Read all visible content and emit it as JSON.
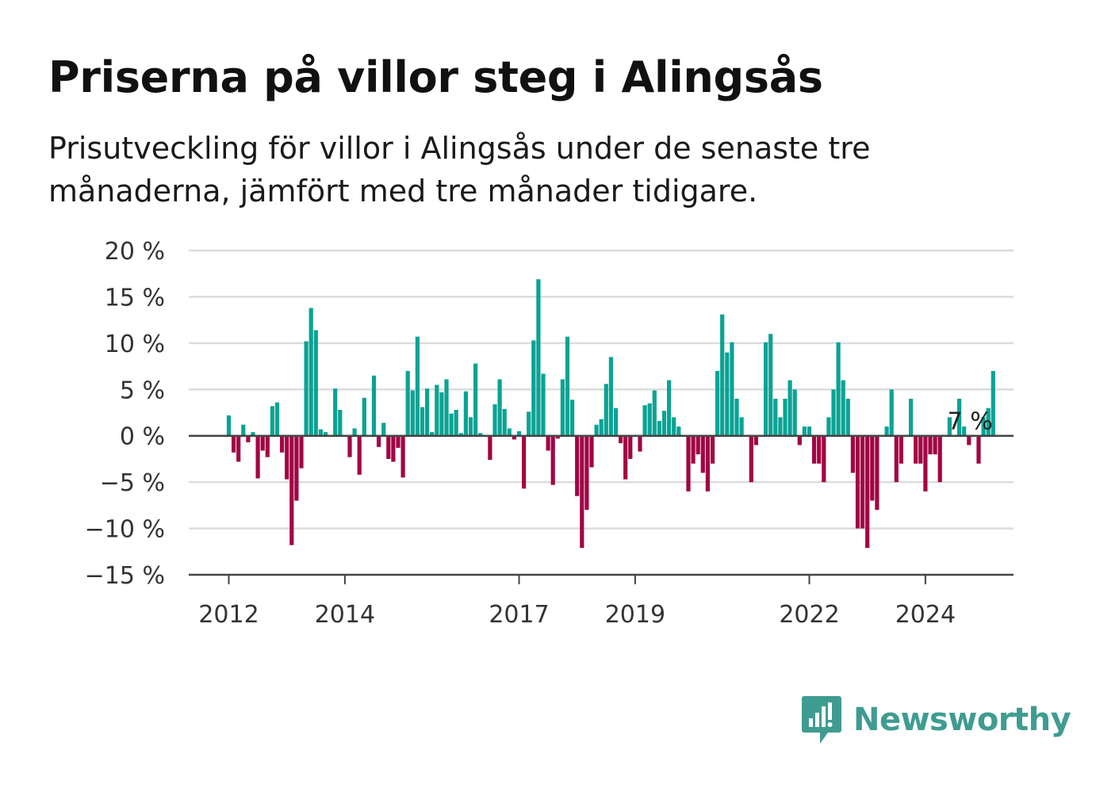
{
  "title": "Priserna på villor steg i Alingsås",
  "subtitle": "Prisutveckling för villor i Alingsås under de senaste tre månaderna, jämfört med tre månader tidigare.",
  "brand": {
    "name": "Newsworthy",
    "icon": "newsworthy-logo-icon",
    "color": "#3f9c91"
  },
  "colors": {
    "positive": "#0aa394",
    "negative": "#a10544",
    "grid": "#dcdcdc",
    "axis": "#444444"
  },
  "chart_data": {
    "type": "bar",
    "title": "Priserna på villor steg i Alingsås",
    "xlabel": "",
    "ylabel": "",
    "ylim": [
      -15,
      20
    ],
    "yticks": [
      20,
      15,
      10,
      5,
      0,
      -5,
      -10,
      -15
    ],
    "ytick_labels": [
      "20 %",
      "15 %",
      "10 %",
      "5 %",
      "0 %",
      "−5 %",
      "−10 %",
      "−15 %"
    ],
    "xticks": [
      {
        "label": "2012",
        "year": 2012
      },
      {
        "label": "2014",
        "year": 2014
      },
      {
        "label": "2017",
        "year": 2017
      },
      {
        "label": "2019",
        "year": 2019
      },
      {
        "label": "2022",
        "year": 2022
      },
      {
        "label": "2024",
        "year": 2024
      }
    ],
    "grid": true,
    "start": "2012-01",
    "frequency": "monthly",
    "unit": "%",
    "annotation": {
      "label": "7 %",
      "month": "2024-10"
    },
    "values": [
      2.2,
      -1.8,
      -2.8,
      1.2,
      -0.7,
      0.4,
      -4.6,
      -1.6,
      -2.3,
      3.2,
      3.6,
      -1.8,
      -4.7,
      -11.8,
      -7.0,
      -3.5,
      10.2,
      13.8,
      11.4,
      0.7,
      0.4,
      0,
      5.1,
      2.8,
      0,
      -2.3,
      0.8,
      -4.2,
      4.1,
      0,
      6.5,
      -1.2,
      1.4,
      -2.5,
      -2.8,
      -1.3,
      -4.5,
      7.0,
      4.9,
      10.7,
      3.1,
      5.1,
      0.4,
      5.5,
      4.7,
      6.1,
      2.4,
      2.8,
      0.3,
      4.8,
      2.0,
      7.8,
      0.3,
      0,
      -2.6,
      3.4,
      6.1,
      2.9,
      0.8,
      -0.4,
      0.5,
      -5.7,
      2.6,
      10.3,
      16.9,
      6.7,
      -1.6,
      -5.3,
      -0.3,
      6.1,
      10.7,
      3.9,
      -6.5,
      -12.1,
      -8.0,
      -3.4,
      1.2,
      1.8,
      5.6,
      8.5,
      3.0,
      -0.8,
      -4.7,
      -2.5,
      0,
      -1.7,
      3.3,
      3.5,
      4.9,
      1.6,
      2.7,
      6.0,
      2.0,
      1.0,
      0,
      -6.0,
      -3.0,
      -2.0,
      -4.0,
      -6.0,
      -3.0,
      7.0,
      13.1,
      9.0,
      10.1,
      4.0,
      2.0,
      0,
      -5.0,
      -1.0,
      0,
      10.1,
      11.0,
      4.0,
      2.0,
      4.0,
      6.0,
      5.0,
      -1.0,
      1.0,
      1.0,
      -3.0,
      -3.0,
      -5.0,
      2.0,
      5.0,
      10.1,
      6.0,
      4.0,
      -4.0,
      -10.0,
      -10.0,
      -12.1,
      -7.0,
      -8.0,
      0,
      1.0,
      5.0,
      -5.0,
      -3.0,
      0,
      4.0,
      -3.0,
      -3.0,
      -6.0,
      -2.0,
      -2.0,
      -5.0,
      0,
      2.0,
      0,
      4.0,
      1.0,
      -1.0,
      0,
      -3.0,
      2.0,
      3.0,
      7.0
    ]
  }
}
